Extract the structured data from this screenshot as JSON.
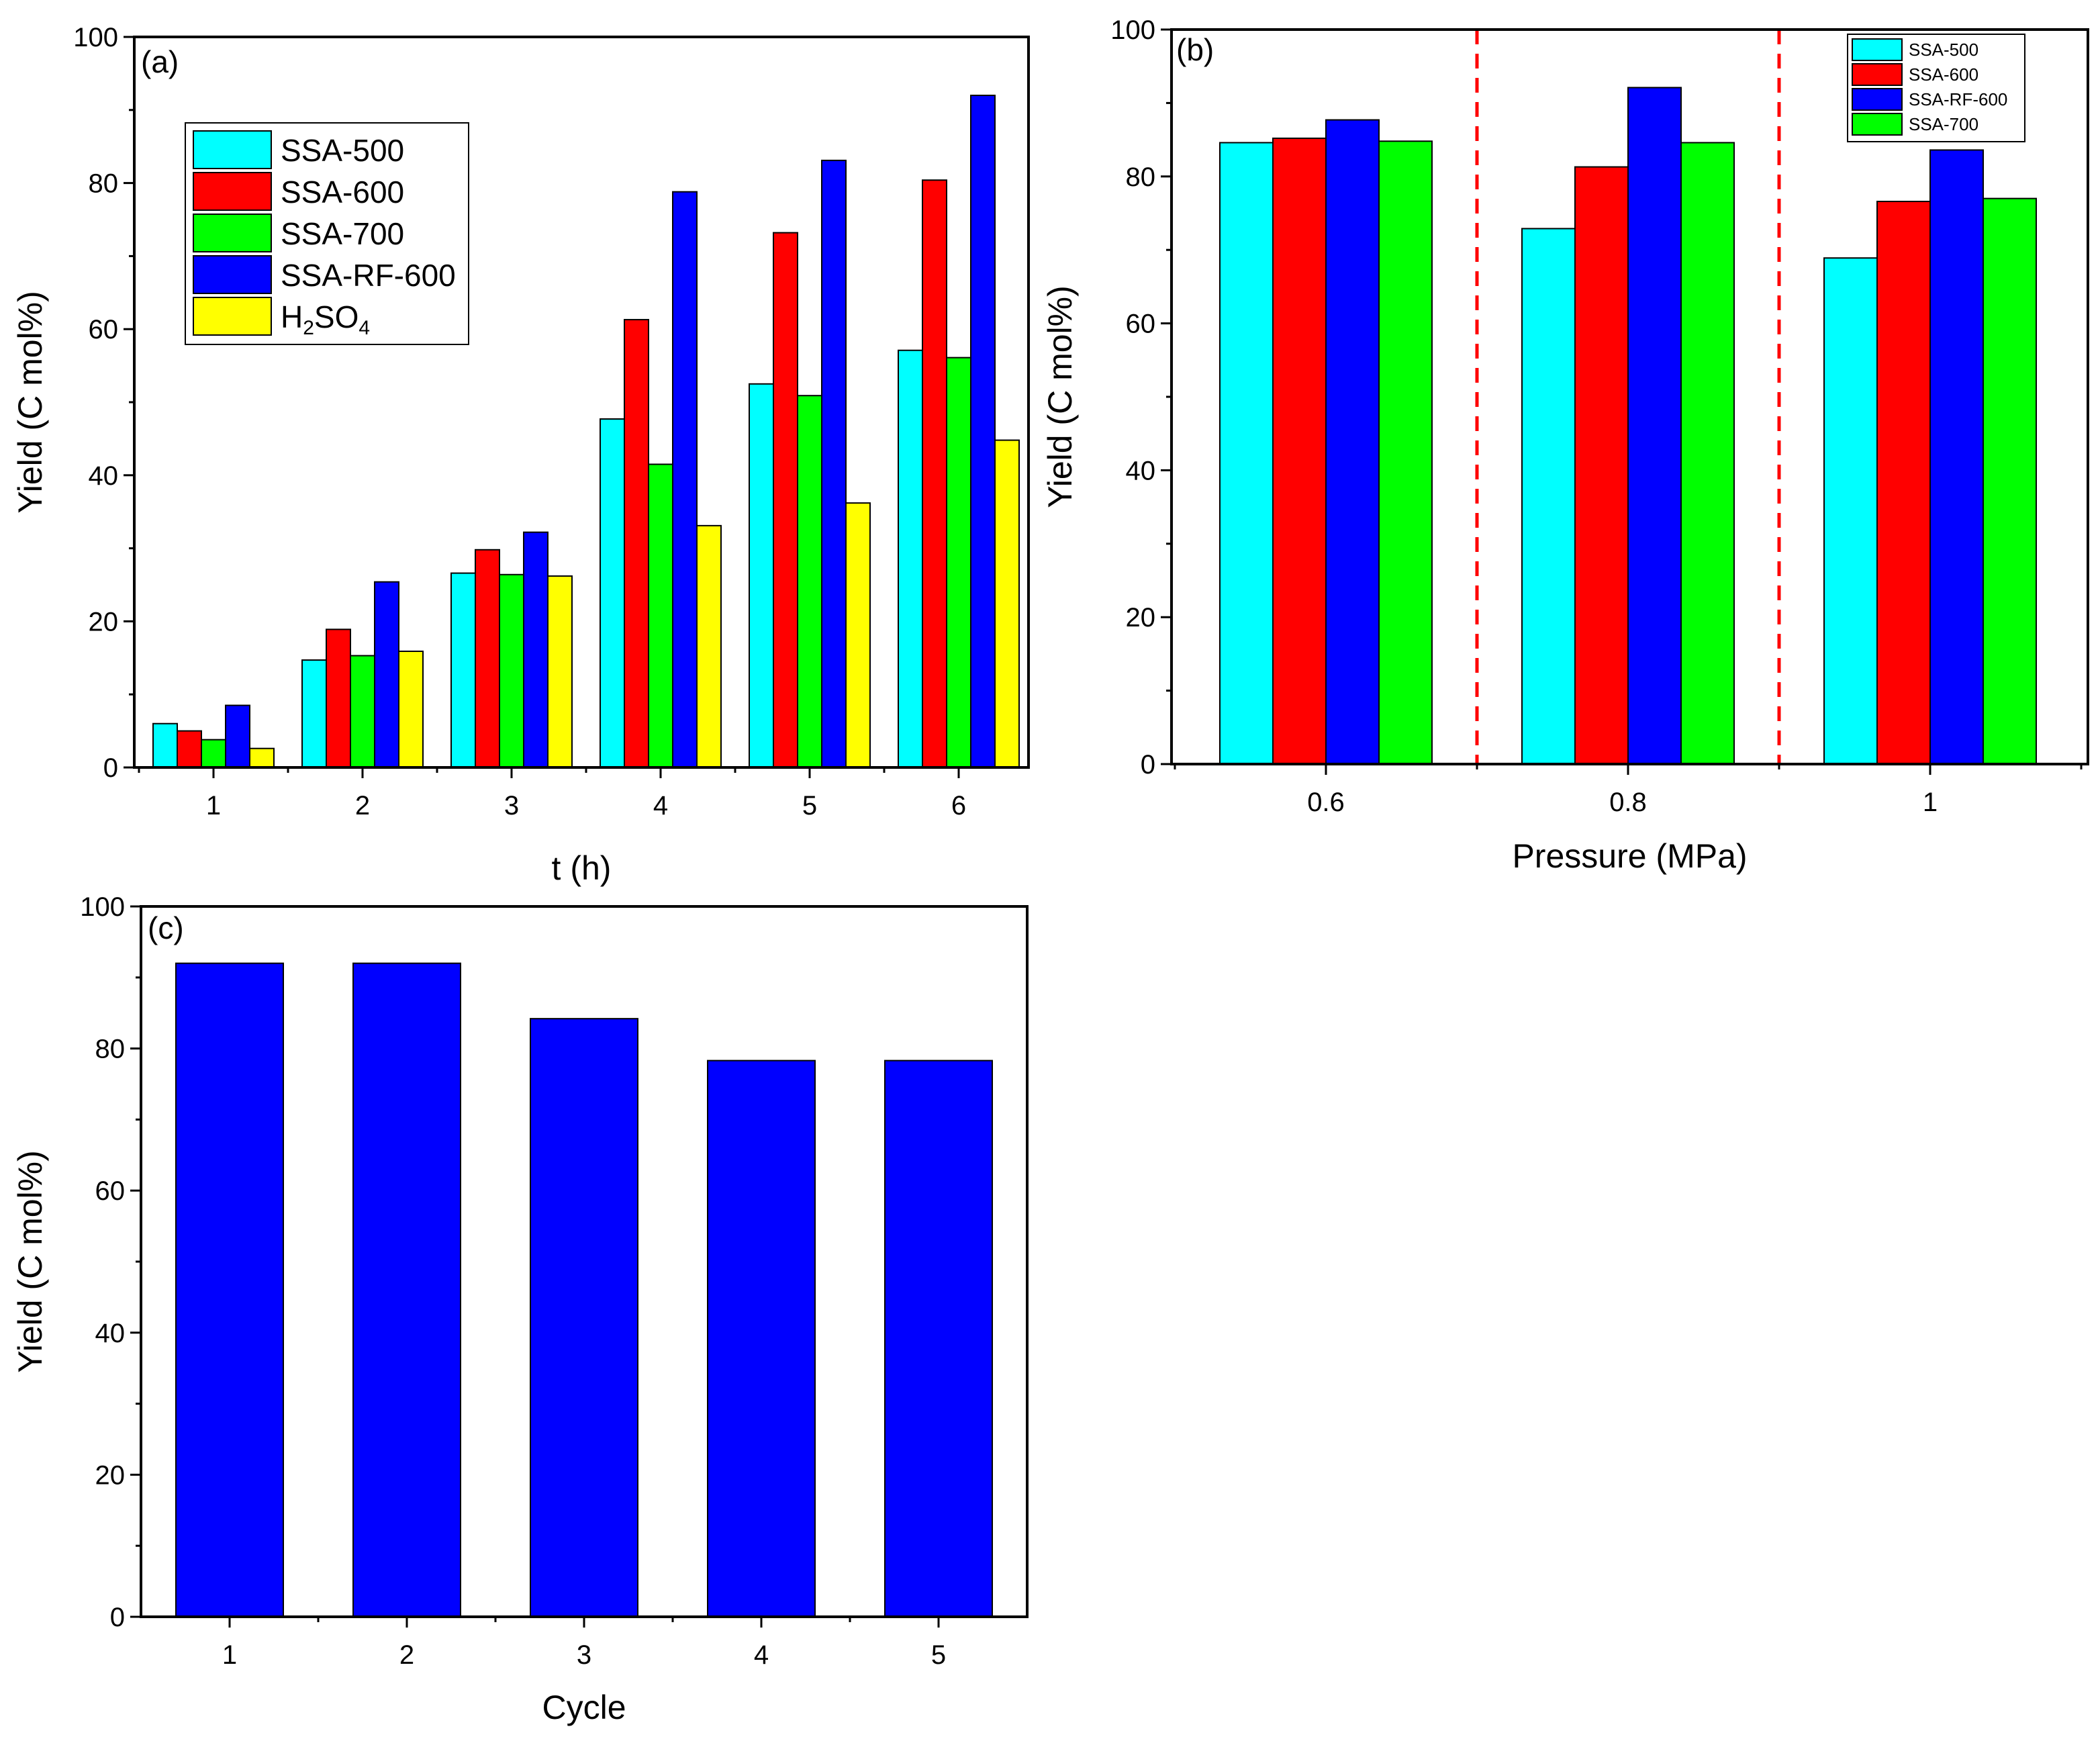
{
  "chart_data": [
    {
      "id": "a",
      "type": "bar",
      "panel_label": "(a)",
      "xlabel": "t (h)",
      "ylabel": "Yield (C mol%)",
      "ylim": [
        0,
        100
      ],
      "yticks": [
        "0",
        "20",
        "40",
        "60",
        "80",
        "100"
      ],
      "categories": [
        "1",
        "2",
        "3",
        "4",
        "5",
        "6"
      ],
      "series": [
        {
          "name": "SSA-500",
          "color": "#00ffff",
          "values": [
            6,
            14.7,
            26.6,
            47.7,
            52.5,
            57.1
          ]
        },
        {
          "name": "SSA-600",
          "color": "#ff0000",
          "values": [
            5,
            18.9,
            29.8,
            61.3,
            73.2,
            80.4
          ]
        },
        {
          "name": "SSA-700",
          "color": "#00ff00",
          "values": [
            3.8,
            15.3,
            26.4,
            41.5,
            50.9,
            56.1
          ]
        },
        {
          "name": "SSA-RF-600",
          "color": "#0000ff",
          "values": [
            8.5,
            25.4,
            32.2,
            78.8,
            83.1,
            92
          ]
        },
        {
          "name": "H2SO4",
          "color": "#ffff00",
          "values": [
            2.6,
            15.9,
            26.2,
            33.1,
            36.2,
            44.8
          ]
        }
      ],
      "legend": [
        {
          "name": "SSA-500",
          "color": "#00ffff"
        },
        {
          "name": "SSA-600",
          "color": "#ff0000"
        },
        {
          "name": "SSA-700",
          "color": "#00ff00"
        },
        {
          "name": "SSA-RF-600",
          "color": "#0000ff"
        },
        {
          "name": "H2SO4",
          "color": "#ffff00",
          "parts": [
            {
              "t": "H"
            },
            {
              "t": "2",
              "sub": true
            },
            {
              "t": "SO"
            },
            {
              "t": "4",
              "sub": true
            }
          ]
        }
      ],
      "legend_position": "top-left"
    },
    {
      "id": "b",
      "type": "bar",
      "panel_label": "(b)",
      "xlabel": "Pressure (MPa)",
      "ylabel": "Yield (C mol%)",
      "ylim": [
        0,
        100
      ],
      "yticks": [
        "0",
        "20",
        "40",
        "60",
        "80",
        "100"
      ],
      "categories": [
        "0.6",
        "0.8",
        "1"
      ],
      "series": [
        {
          "name": "SSA-500",
          "color": "#00ffff",
          "values": [
            84.6,
            72.9,
            68.9
          ]
        },
        {
          "name": "SSA-600",
          "color": "#ff0000",
          "values": [
            85.2,
            81.3,
            76.6
          ]
        },
        {
          "name": "SSA-RF-600",
          "color": "#0000ff",
          "values": [
            87.7,
            92.1,
            83.6
          ]
        },
        {
          "name": "SSA-700",
          "color": "#00ff00",
          "values": [
            84.8,
            84.6,
            77
          ]
        }
      ],
      "legend": [
        {
          "name": "SSA-500",
          "color": "#00ffff"
        },
        {
          "name": "SSA-600",
          "color": "#ff0000"
        },
        {
          "name": "SSA-RF-600",
          "color": "#0000ff"
        },
        {
          "name": "SSA-700",
          "color": "#00ff00"
        }
      ],
      "legend_position": "top-right",
      "dividers": "dashed red separators between pressure groups"
    },
    {
      "id": "c",
      "type": "bar",
      "panel_label": "(c)",
      "xlabel": "Cycle",
      "ylabel": "Yield (C mol%)",
      "ylim": [
        0,
        100
      ],
      "yticks": [
        "0",
        "20",
        "40",
        "60",
        "80",
        "100"
      ],
      "categories": [
        "1",
        "2",
        "3",
        "4",
        "5"
      ],
      "series": [
        {
          "name": "SSA-RF-600",
          "color": "#0000ff",
          "values": [
            92,
            92,
            84.2,
            78.3,
            78.3
          ]
        }
      ]
    }
  ]
}
